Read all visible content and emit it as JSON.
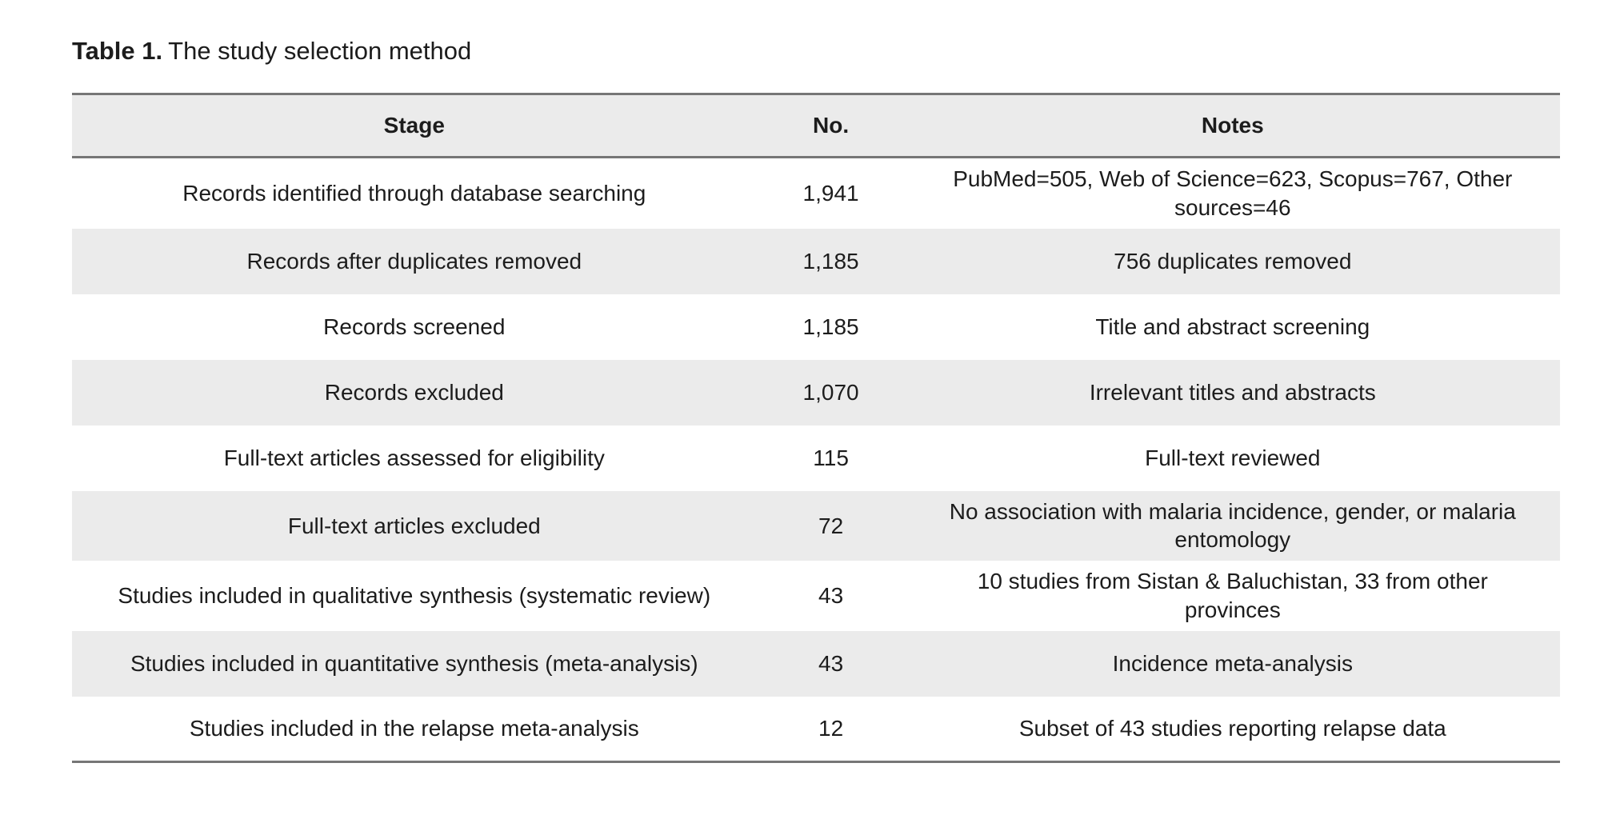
{
  "caption": {
    "label": "Table 1.",
    "text": "The study selection method"
  },
  "table": {
    "columns": [
      {
        "label": "Stage"
      },
      {
        "label": "No."
      },
      {
        "label": "Notes"
      }
    ],
    "rows": [
      {
        "stage": "Records identified through database searching",
        "no": "1,941",
        "notes": "PubMed=505, Web of Science=623, Scopus=767, Other sources=46"
      },
      {
        "stage": "Records after duplicates removed",
        "no": "1,185",
        "notes": "756 duplicates removed"
      },
      {
        "stage": "Records screened",
        "no": "1,185",
        "notes": "Title and abstract screening"
      },
      {
        "stage": "Records excluded",
        "no": "1,070",
        "notes": "Irrelevant titles and abstracts"
      },
      {
        "stage": "Full-text articles assessed for eligibility",
        "no": "115",
        "notes": "Full-text reviewed"
      },
      {
        "stage": "Full-text articles excluded",
        "no": "72",
        "notes": "No association with malaria incidence, gender, or malaria entomology"
      },
      {
        "stage": "Studies included in qualitative synthesis (systematic review)",
        "no": "43",
        "notes": "10 studies from Sistan & Baluchistan, 33 from other provinces"
      },
      {
        "stage": "Studies included in quantitative synthesis (meta-analysis)",
        "no": "43",
        "notes": "Incidence meta-analysis"
      },
      {
        "stage": "Studies included in the relapse meta-analysis",
        "no": "12",
        "notes": "Subset of 43 studies reporting relapse data"
      }
    ]
  },
  "colors": {
    "stripe": "#ebebeb",
    "border": "#767676",
    "text": "#1c1c1c",
    "background": "#ffffff"
  }
}
